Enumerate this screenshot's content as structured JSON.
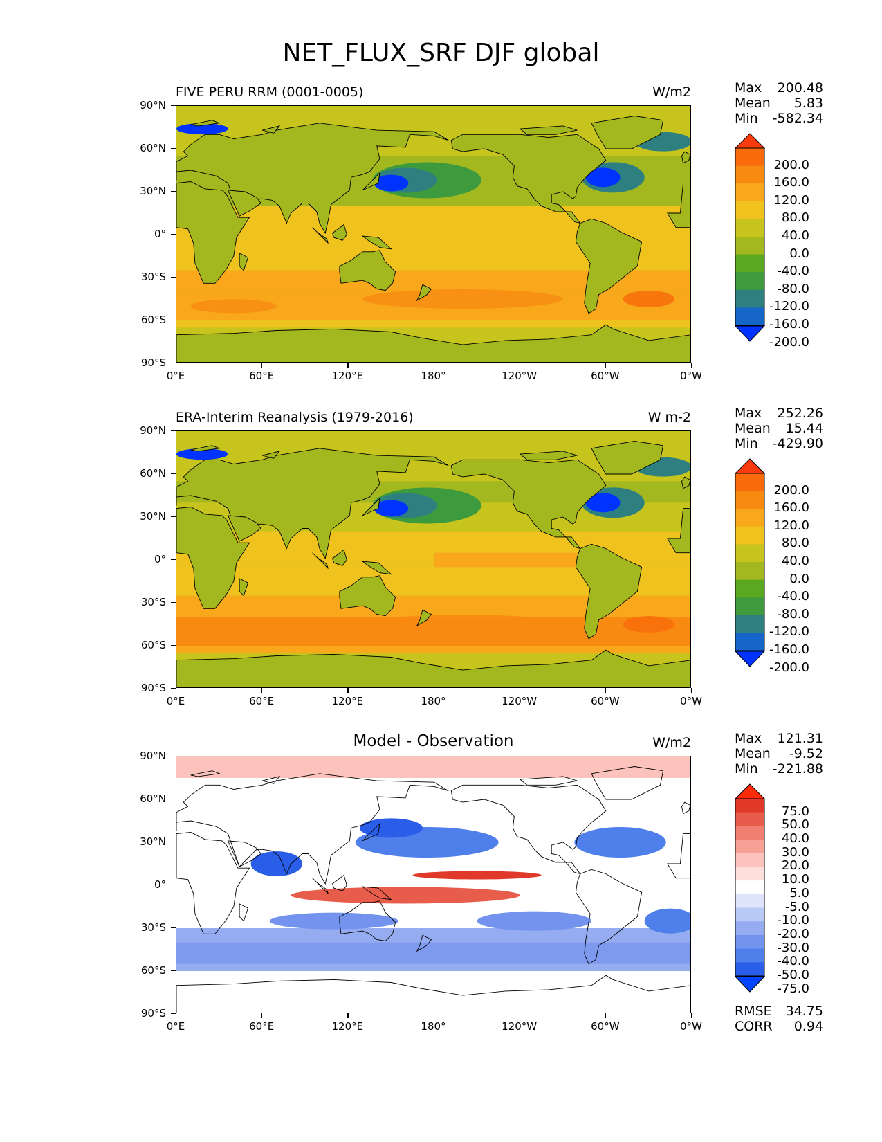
{
  "figure_title": "NET_FLUX_SRF DJF global",
  "colors": {
    "flux": [
      "#0033ff",
      "#1566c8",
      "#2e8080",
      "#3d9a3d",
      "#5aa820",
      "#a2b81e",
      "#c8c41e",
      "#f0c21e",
      "#f8a81a",
      "#f88a12",
      "#f86a0a",
      "#f83a0c"
    ],
    "diff": [
      "#0044ff",
      "#2a5ee8",
      "#4f7fea",
      "#7393ee",
      "#96acf0",
      "#b9c9f5",
      "#dde4fb",
      "#ffffff",
      "#fde0dc",
      "#fbc3bb",
      "#f7a196",
      "#f07f72",
      "#e85c4c",
      "#e0392a",
      "#ff2a08"
    ]
  },
  "chart_data": [
    {
      "type": "heatmap",
      "name": "panel1",
      "left_title": "FIVE PERU RRM (0001-0005)",
      "units": "W/m2",
      "stats": {
        "max": "200.48",
        "mean": "5.83",
        "min": "-582.34"
      },
      "stat_labels": {
        "max": "Max",
        "mean": "Mean",
        "min": "Min"
      },
      "colorbar_levels": [
        "200.0",
        "160.0",
        "120.0",
        "80.0",
        "40.0",
        "0.0",
        "-40.0",
        "-80.0",
        "-120.0",
        "-160.0",
        "-200.0"
      ],
      "colorbar_type": "flux",
      "variant": "model"
    },
    {
      "type": "heatmap",
      "name": "panel2",
      "left_title": "ERA-Interim Reanalysis (1979-2016)",
      "units": "W m-2",
      "stats": {
        "max": "252.26",
        "mean": "15.44",
        "min": "-429.90"
      },
      "stat_labels": {
        "max": "Max",
        "mean": "Mean",
        "min": "Min"
      },
      "colorbar_levels": [
        "200.0",
        "160.0",
        "120.0",
        "80.0",
        "40.0",
        "0.0",
        "-40.0",
        "-80.0",
        "-120.0",
        "-160.0",
        "-200.0"
      ],
      "colorbar_type": "flux",
      "variant": "obs"
    },
    {
      "type": "heatmap",
      "name": "panel3",
      "center_title": "Model - Observation",
      "units": "W/m2",
      "stats": {
        "max": "121.31",
        "mean": "-9.52",
        "min": "-221.88"
      },
      "stat_labels": {
        "max": "Max",
        "mean": "Mean",
        "min": "Min"
      },
      "colorbar_levels": [
        "75.0",
        "50.0",
        "40.0",
        "30.0",
        "20.0",
        "10.0",
        "5.0",
        "-5.0",
        "-10.0",
        "-20.0",
        "-30.0",
        "-40.0",
        "-50.0",
        "-75.0"
      ],
      "colorbar_type": "diff",
      "variant": "diff",
      "fit": {
        "rmse_label": "RMSE",
        "rmse": "34.75",
        "corr_label": "CORR",
        "corr": "0.94"
      }
    }
  ],
  "axes": {
    "lat_labels": [
      "90°N",
      "60°N",
      "30°N",
      "0°",
      "30°S",
      "60°S",
      "90°S"
    ],
    "lon_labels": [
      "0°E",
      "60°E",
      "120°E",
      "180°",
      "120°W",
      "60°W",
      "0°W"
    ],
    "ylim": [
      -90,
      90
    ],
    "xlim": [
      0,
      360
    ]
  }
}
